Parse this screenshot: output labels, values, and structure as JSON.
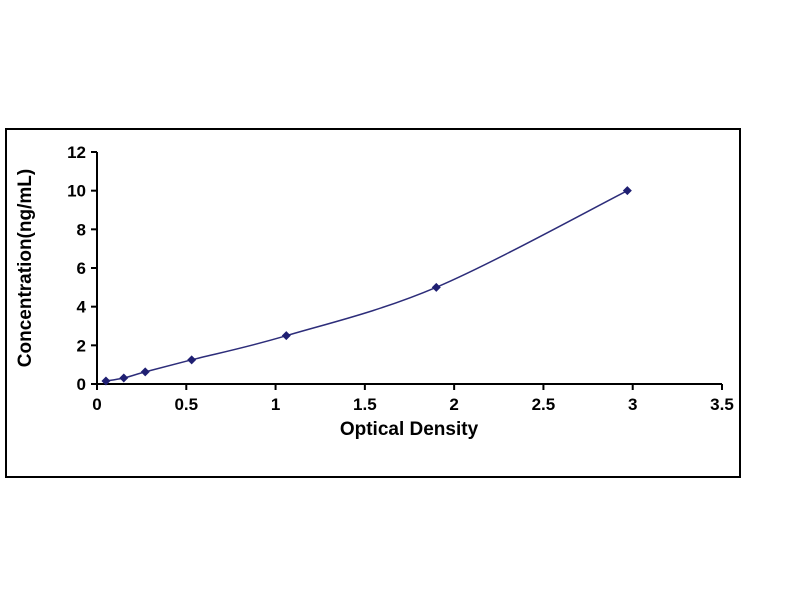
{
  "page": {
    "background_color": "#ffffff"
  },
  "chart_data": {
    "type": "line",
    "title": "",
    "xlabel": "Optical Density",
    "ylabel": "Concentration(ng/mL)",
    "x": [
      0.05,
      0.15,
      0.27,
      0.53,
      1.06,
      1.9,
      2.97
    ],
    "y": [
      0.156,
      0.312,
      0.625,
      1.25,
      2.5,
      5,
      10
    ],
    "xlim": [
      0,
      3.5
    ],
    "ylim": [
      0,
      12
    ],
    "x_tick_labels": [
      "0",
      "0.5",
      "1",
      "1.5",
      "2",
      "2.5",
      "3",
      "3.5"
    ],
    "y_tick_labels": [
      "0",
      "2",
      "4",
      "6",
      "8",
      "10",
      "12"
    ],
    "marker": "diamond",
    "grid": "off",
    "legend": "none",
    "line_color": "#2d2d7a",
    "marker_color": "#1f1f72",
    "axis_color": "#000000",
    "text_color": "#000000"
  }
}
